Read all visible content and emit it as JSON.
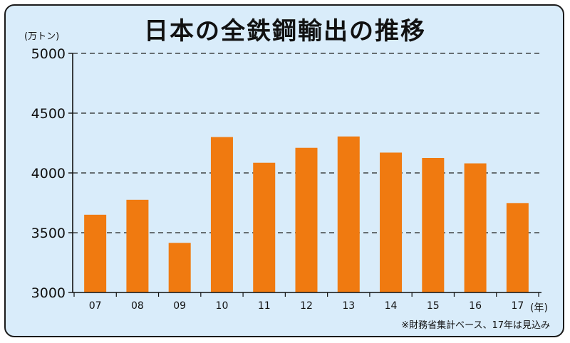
{
  "chart_data": {
    "type": "bar",
    "title": "日本の全鉄鋼輸出の推移",
    "ylabel": "(万トン)",
    "xlabel": "",
    "x_unit": "(年)",
    "note": "※財務省集計ベース、17年は見込み",
    "categories": [
      "07",
      "08",
      "09",
      "10",
      "11",
      "12",
      "13",
      "14",
      "15",
      "16",
      "17"
    ],
    "values": [
      3650,
      3775,
      3415,
      4300,
      4085,
      4210,
      4305,
      4170,
      4125,
      4080,
      3748
    ],
    "ylim": [
      3000,
      5000
    ],
    "yticks": [
      3000,
      3500,
      4000,
      4500,
      5000
    ],
    "grid": true,
    "bar_color": "#f07a10",
    "background_color": "#d9ecfa"
  }
}
